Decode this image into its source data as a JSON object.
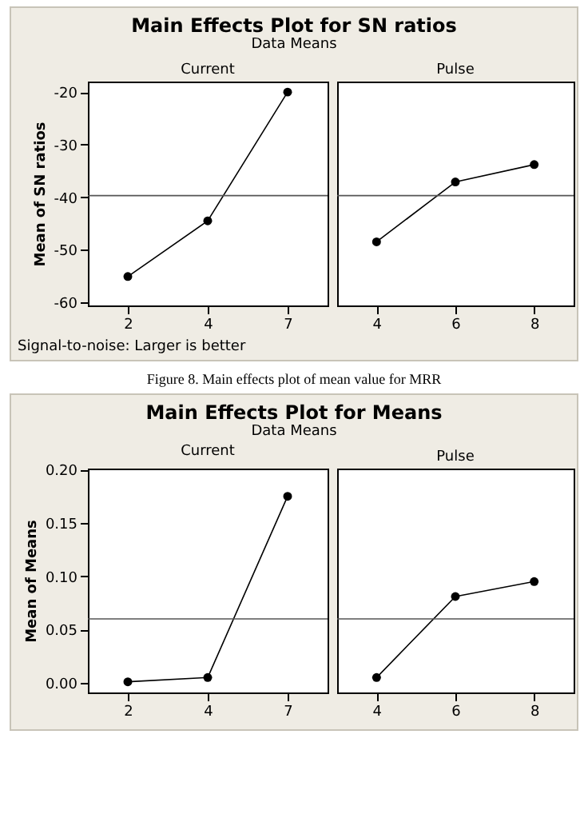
{
  "chart_data": [
    {
      "type": "line",
      "title": "Main Effects Plot for SN ratios",
      "subtitle": "Data Means",
      "xlabel": "Current",
      "ylabel": "Mean of SN ratios",
      "categories": [
        "2",
        "4",
        "7"
      ],
      "series": [
        {
          "color": "#000000",
          "values": [
            -55.1,
            -44.5,
            -20.0
          ]
        }
      ],
      "ylim": [
        -60.6,
        -18
      ],
      "yticks": [
        -60,
        -50,
        -40,
        -30,
        -20
      ],
      "ref_lines": [
        {
          "axis": "y",
          "value": -39.7
        }
      ],
      "marker": "circle",
      "annotations": [
        "Signal-to-noise: Larger is better"
      ]
    },
    {
      "type": "line",
      "xlabel": "Pulse",
      "categories": [
        "4",
        "6",
        "8"
      ],
      "series": [
        {
          "color": "#000000",
          "values": [
            -48.5,
            -37.1,
            -33.8
          ]
        }
      ],
      "ylim": [
        -60.6,
        -18
      ],
      "ref_lines": [
        {
          "axis": "y",
          "value": -39.7
        }
      ],
      "marker": "circle",
      "tick_labels": "x",
      "annotations": [
        "Figure 8.    Main effects plot of mean value for MRR"
      ]
    },
    {
      "type": "line",
      "title": "Main Effects Plot for Means",
      "subtitle": "Data Means",
      "xlabel": "Current",
      "ylabel": "Mean of Means",
      "categories": [
        "2",
        "4",
        "7"
      ],
      "series": [
        {
          "color": "#000000",
          "values": [
            0.001,
            0.005,
            0.175
          ]
        }
      ],
      "ylim": [
        -0.009,
        0.201
      ],
      "yticks": [
        {
          "value": 0,
          "label": "0.00"
        },
        {
          "value": 0.05,
          "label": "0.05"
        },
        {
          "value": 0.1,
          "label": "0.10"
        },
        {
          "value": 0.15,
          "label": "0.15"
        },
        {
          "value": 0.2,
          "label": "0.20"
        }
      ],
      "ref_lines": [
        {
          "axis": "y",
          "value": 0.06
        }
      ],
      "marker": "circle"
    },
    {
      "type": "line",
      "xlabel": "Pulse",
      "categories": [
        "4",
        "6",
        "8"
      ],
      "series": [
        {
          "color": "#000000",
          "values": [
            0.005,
            0.081,
            0.095
          ]
        }
      ],
      "ylim": [
        -0.009,
        0.201
      ],
      "ref_lines": [
        {
          "axis": "y",
          "value": 0.06
        }
      ],
      "marker": "circle",
      "tick_labels": "x"
    }
  ]
}
